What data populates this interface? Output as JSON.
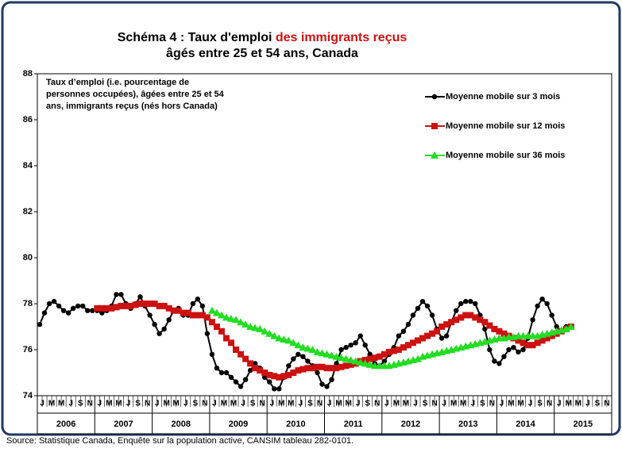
{
  "chart_data": {
    "type": "line",
    "title": {
      "line1": "Schéma 4 : Taux d'emploi ",
      "highlight": "des immigrants reçus",
      "line2": "âgés entre 25 et 54 ans, Canada"
    },
    "annotation": [
      "Taux d’emploi (i.e. pourcentage de",
      "personnes occupées), âgées entre 25 et 54",
      "ans, immigrants reçus (nés hors Canada)"
    ],
    "source": "Source: Statistique Canada, Enquête sur la population active, CANSIM tableau 282-0101.",
    "categories": [
      "J",
      null,
      "M",
      null,
      "M",
      null,
      "J",
      null,
      "S",
      null,
      "N",
      null,
      "J",
      null,
      "M",
      null,
      "M",
      null,
      "J",
      null,
      "S",
      null,
      "N",
      null,
      "J",
      null,
      "M",
      null,
      "M",
      null,
      "J",
      null,
      "S",
      null,
      "N",
      null,
      "J",
      null,
      "M",
      null,
      "M",
      null,
      "J",
      null,
      "S",
      null,
      "N",
      null,
      "J",
      null,
      "M",
      null,
      "M",
      null,
      "J",
      null,
      "S",
      null,
      "N",
      null,
      "J",
      null,
      "M",
      null,
      "M",
      null,
      "J",
      null,
      "S",
      null,
      "N",
      null,
      "J",
      null,
      "M",
      null,
      "M",
      null,
      "J",
      null,
      "S",
      null,
      "N",
      null,
      "J",
      null,
      "M",
      null,
      "M",
      null,
      "J",
      null,
      "S",
      null,
      "N",
      null,
      "J",
      null,
      "M",
      null,
      "M",
      null,
      "J",
      null,
      "S",
      null,
      "N",
      null,
      "J",
      null,
      "M",
      null,
      "M",
      null,
      "J",
      null,
      "S",
      null,
      "N",
      null
    ],
    "years": [
      "2006",
      "2007",
      "2008",
      "2009",
      "2010",
      "2011",
      "2012",
      "2013",
      "2014",
      "2015"
    ],
    "ylim": [
      74,
      88
    ],
    "yticks": [
      74,
      76,
      78,
      80,
      82,
      84,
      86,
      88
    ],
    "series": [
      {
        "name": "Moyenne mobile sur 3 mois",
        "color": "#000000",
        "marker": "circle",
        "values": [
          77.1,
          77.6,
          78.0,
          78.1,
          77.9,
          77.7,
          77.6,
          77.8,
          77.9,
          77.9,
          77.7,
          77.7,
          77.7,
          77.6,
          77.7,
          77.9,
          78.4,
          78.4,
          78.0,
          77.8,
          78.0,
          78.3,
          77.9,
          77.5,
          77.1,
          76.7,
          76.9,
          77.3,
          77.7,
          77.8,
          77.5,
          77.5,
          78.0,
          78.2,
          77.9,
          76.7,
          75.8,
          75.2,
          75.0,
          75.0,
          74.8,
          74.6,
          74.4,
          74.7,
          75.1,
          75.4,
          75.2,
          74.8,
          74.6,
          74.3,
          74.3,
          74.8,
          75.3,
          75.6,
          75.8,
          75.7,
          75.5,
          75.3,
          75.0,
          74.5,
          74.4,
          74.7,
          75.4,
          76.0,
          76.1,
          76.2,
          76.3,
          76.6,
          76.2,
          75.8,
          75.4,
          75.3,
          75.5,
          75.8,
          76.1,
          76.6,
          76.8,
          77.1,
          77.5,
          77.8,
          78.1,
          77.9,
          77.5,
          76.9,
          76.5,
          76.6,
          77.2,
          77.7,
          78.0,
          78.1,
          78.1,
          78.0,
          77.5,
          76.9,
          76.0,
          75.5,
          75.4,
          75.7,
          76.0,
          76.1,
          75.9,
          76.0,
          76.5,
          77.3,
          77.9,
          78.2,
          78.0,
          77.5,
          77.0,
          76.8,
          77.0,
          77.0,
          null,
          null,
          null,
          null,
          null,
          null,
          null,
          null
        ]
      },
      {
        "name": "Moyenne mobile sur 12 mois",
        "color": "#cc1111",
        "marker": "square",
        "values": [
          null,
          null,
          null,
          null,
          null,
          null,
          null,
          null,
          null,
          null,
          null,
          null,
          77.8,
          77.8,
          77.8,
          77.8,
          77.85,
          77.9,
          77.9,
          77.9,
          77.95,
          78.0,
          78.0,
          78.0,
          78.0,
          77.9,
          77.9,
          77.8,
          77.7,
          77.7,
          77.6,
          77.6,
          77.5,
          77.5,
          77.5,
          77.4,
          77.2,
          77.0,
          76.8,
          76.5,
          76.3,
          76.0,
          75.8,
          75.6,
          75.4,
          75.2,
          75.1,
          75.0,
          74.9,
          74.85,
          74.8,
          74.85,
          74.9,
          75.0,
          75.1,
          75.15,
          75.2,
          75.2,
          75.25,
          75.25,
          75.2,
          75.2,
          75.2,
          75.25,
          75.3,
          75.35,
          75.4,
          75.5,
          75.55,
          75.6,
          75.65,
          75.7,
          75.8,
          75.9,
          75.95,
          76.0,
          76.1,
          76.2,
          76.3,
          76.4,
          76.5,
          76.6,
          76.7,
          76.8,
          77.0,
          77.1,
          77.2,
          77.3,
          77.4,
          77.5,
          77.5,
          77.4,
          77.3,
          77.2,
          77.05,
          76.9,
          76.8,
          76.7,
          76.6,
          76.5,
          76.4,
          76.3,
          76.2,
          76.2,
          76.3,
          76.4,
          76.5,
          76.6,
          76.7,
          76.8,
          76.9,
          77.0,
          null,
          null,
          null,
          null,
          null,
          null,
          null,
          null
        ]
      },
      {
        "name": "Moyenne mobile sur 36 mois",
        "color": "#22dd22",
        "marker": "triangle",
        "values": [
          null,
          null,
          null,
          null,
          null,
          null,
          null,
          null,
          null,
          null,
          null,
          null,
          null,
          null,
          null,
          null,
          null,
          null,
          null,
          null,
          null,
          null,
          null,
          null,
          null,
          null,
          null,
          null,
          null,
          null,
          null,
          null,
          null,
          null,
          null,
          null,
          77.7,
          77.6,
          77.5,
          77.4,
          77.35,
          77.3,
          77.2,
          77.1,
          77.0,
          76.95,
          76.9,
          76.8,
          76.7,
          76.6,
          76.5,
          76.45,
          76.4,
          76.3,
          76.2,
          76.1,
          76.05,
          76.0,
          75.9,
          75.85,
          75.8,
          75.75,
          75.7,
          75.65,
          75.6,
          75.55,
          75.5,
          75.45,
          75.4,
          75.35,
          75.3,
          75.3,
          75.3,
          75.3,
          75.35,
          75.4,
          75.45,
          75.5,
          75.55,
          75.6,
          75.7,
          75.75,
          75.8,
          75.85,
          75.9,
          75.95,
          76.0,
          76.05,
          76.1,
          76.15,
          76.2,
          76.25,
          76.3,
          76.35,
          76.4,
          76.45,
          76.5,
          76.5,
          76.55,
          76.55,
          76.6,
          76.6,
          76.6,
          76.6,
          76.6,
          76.65,
          76.7,
          76.75,
          76.8,
          76.85,
          76.9,
          77.0,
          null,
          null,
          null,
          null,
          null,
          null,
          null,
          null
        ]
      }
    ]
  }
}
